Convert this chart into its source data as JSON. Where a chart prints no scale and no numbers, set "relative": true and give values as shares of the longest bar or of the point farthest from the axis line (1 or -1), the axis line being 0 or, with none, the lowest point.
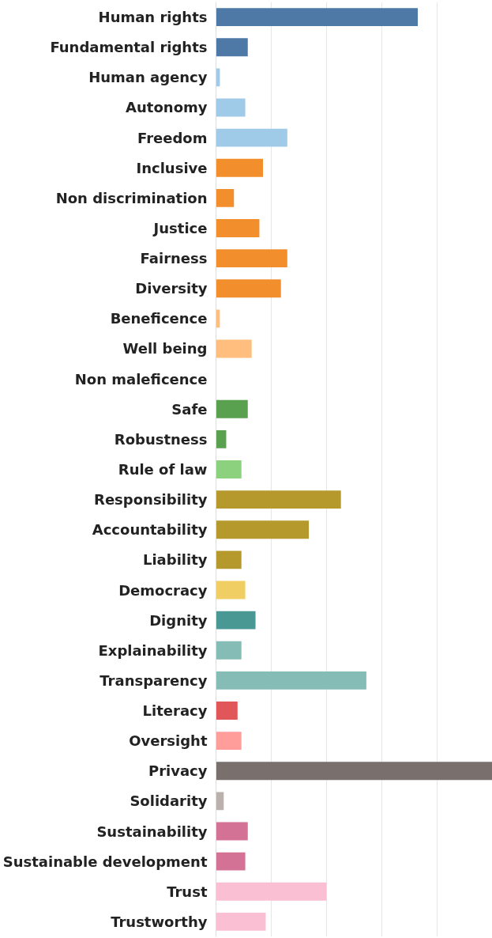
{
  "chart_data": {
    "type": "bar",
    "orientation": "horizontal",
    "relative": true,
    "grid": "x",
    "categories": [
      "Human rights",
      "Fundamental rights",
      "Human agency",
      "Autonomy",
      "Freedom",
      "Inclusive",
      "Non discrimination",
      "Justice",
      "Fairness",
      "Diversity",
      "Beneficence",
      "Well being",
      "Non maleficence",
      "Safe",
      "Robustness",
      "Rule of law",
      "Responsibility",
      "Accountability",
      "Liability",
      "Democracy",
      "Dignity",
      "Explainability",
      "Transparency",
      "Literacy",
      "Oversight",
      "Privacy",
      "Solidarity",
      "Sustainability",
      "Sustainable development",
      "Trust",
      "Trustworthy"
    ],
    "values": [
      0.73,
      0.115,
      0.014,
      0.106,
      0.258,
      0.17,
      0.065,
      0.157,
      0.258,
      0.235,
      0.014,
      0.129,
      0,
      0.115,
      0.037,
      0.092,
      0.452,
      0.336,
      0.092,
      0.106,
      0.143,
      0.092,
      0.544,
      0.078,
      0.092,
      1,
      0.028,
      0.115,
      0.106,
      0.4,
      0.18
    ],
    "colors": [
      "#4e79a7",
      "#4e79a7",
      "#a0cbe8",
      "#a0cbe8",
      "#a0cbe8",
      "#f28e2b",
      "#f28e2b",
      "#f28e2b",
      "#f28e2b",
      "#f28e2b",
      "#ffbe7d",
      "#ffbe7d",
      "#ffbe7d",
      "#59a14f",
      "#59a14f",
      "#8cd17d",
      "#b6992d",
      "#b6992d",
      "#b6992d",
      "#f1ce63",
      "#499894",
      "#86bcb6",
      "#86bcb6",
      "#e15759",
      "#ff9d9a",
      "#79706e",
      "#bab0ac",
      "#d37295",
      "#d37295",
      "#fabfd2",
      "#fabfd2"
    ]
  }
}
